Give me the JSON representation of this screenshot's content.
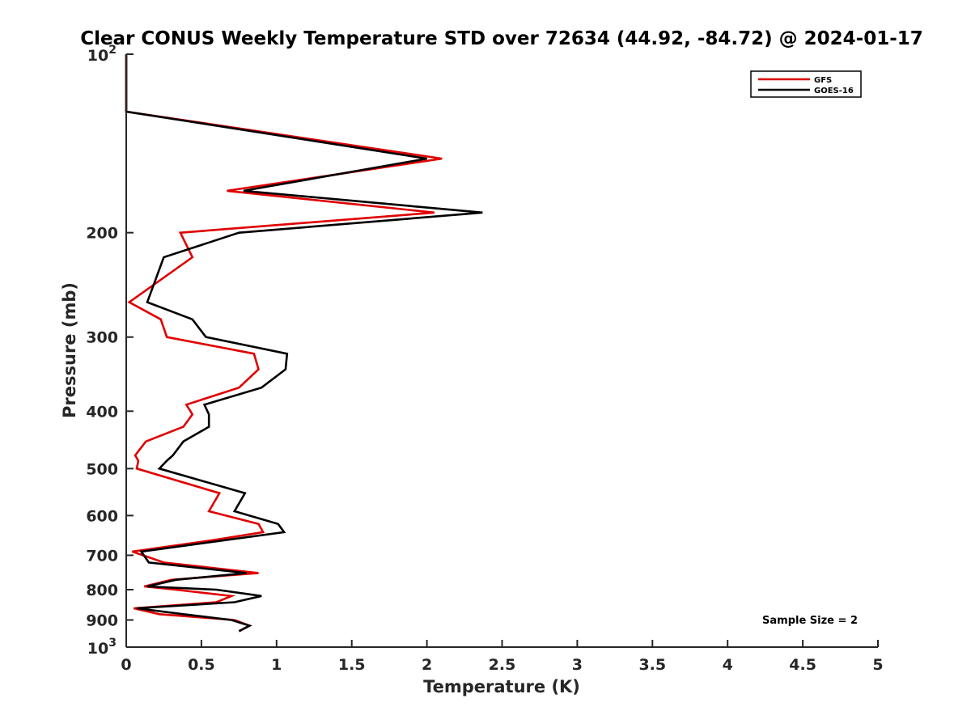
{
  "chart_data": {
    "type": "line",
    "title": "Clear CONUS Weekly Temperature STD over 72634 (44.92, -84.72) @ 2024-01-17",
    "xlabel": "Temperature (K)",
    "ylabel": "Pressure (mb)",
    "xlim": [
      0,
      5
    ],
    "ylim": [
      1000,
      100
    ],
    "y_scale": "log",
    "x_ticks": [
      "0",
      "0.5",
      "1",
      "1.5",
      "2",
      "2.5",
      "3",
      "3.5",
      "4",
      "4.5",
      "5"
    ],
    "y_ticks": [
      {
        "value": 200,
        "label": "200"
      },
      {
        "value": 300,
        "label": "300"
      },
      {
        "value": 400,
        "label": "400"
      },
      {
        "value": 500,
        "label": "500"
      },
      {
        "value": 600,
        "label": "600"
      },
      {
        "value": 700,
        "label": "700"
      },
      {
        "value": 800,
        "label": "800"
      },
      {
        "value": 900,
        "label": "900"
      }
    ],
    "y_end_labels": {
      "top_base": "10",
      "top_exp": "2",
      "bottom_base": "10",
      "bottom_exp": "3"
    },
    "legend_position": "top-right",
    "grid": false,
    "annotation": "Sample Size = 2",
    "series": [
      {
        "name": "GFS",
        "color": "#e00000",
        "points": [
          [
            0.0,
            100
          ],
          [
            0.0,
            125
          ],
          [
            2.1,
            150
          ],
          [
            0.67,
            170
          ],
          [
            2.05,
            185
          ],
          [
            0.36,
            200
          ],
          [
            0.44,
            220
          ],
          [
            0.02,
            262
          ],
          [
            0.23,
            280
          ],
          [
            0.27,
            300
          ],
          [
            0.85,
            320
          ],
          [
            0.88,
            340
          ],
          [
            0.75,
            365
          ],
          [
            0.4,
            390
          ],
          [
            0.44,
            405
          ],
          [
            0.38,
            425
          ],
          [
            0.13,
            450
          ],
          [
            0.06,
            475
          ],
          [
            0.08,
            485
          ],
          [
            0.07,
            500
          ],
          [
            0.62,
            550
          ],
          [
            0.55,
            590
          ],
          [
            0.88,
            620
          ],
          [
            0.91,
            640
          ],
          [
            0.58,
            660
          ],
          [
            0.04,
            690
          ],
          [
            0.25,
            720
          ],
          [
            0.88,
            750
          ],
          [
            0.3,
            770
          ],
          [
            0.12,
            790
          ],
          [
            0.33,
            800
          ],
          [
            0.7,
            820
          ],
          [
            0.6,
            840
          ],
          [
            0.05,
            860
          ],
          [
            0.22,
            880
          ],
          [
            0.72,
            900
          ],
          [
            0.82,
            920
          ],
          [
            0.75,
            940
          ]
        ]
      },
      {
        "name": "GOES-16",
        "color": "#000000",
        "points": [
          [
            0.0,
            100
          ],
          [
            0.0,
            125
          ],
          [
            2.0,
            150
          ],
          [
            0.78,
            170
          ],
          [
            2.37,
            185
          ],
          [
            0.75,
            200
          ],
          [
            0.25,
            220
          ],
          [
            0.14,
            262
          ],
          [
            0.44,
            280
          ],
          [
            0.53,
            300
          ],
          [
            1.07,
            320
          ],
          [
            1.06,
            340
          ],
          [
            0.9,
            365
          ],
          [
            0.52,
            390
          ],
          [
            0.55,
            405
          ],
          [
            0.55,
            425
          ],
          [
            0.38,
            450
          ],
          [
            0.31,
            475
          ],
          [
            0.27,
            485
          ],
          [
            0.22,
            500
          ],
          [
            0.79,
            550
          ],
          [
            0.72,
            590
          ],
          [
            1.01,
            620
          ],
          [
            1.05,
            640
          ],
          [
            0.1,
            690
          ],
          [
            0.15,
            720
          ],
          [
            0.8,
            750
          ],
          [
            0.33,
            770
          ],
          [
            0.14,
            790
          ],
          [
            0.6,
            800
          ],
          [
            0.9,
            820
          ],
          [
            0.72,
            840
          ],
          [
            0.07,
            860
          ],
          [
            0.38,
            880
          ],
          [
            0.7,
            900
          ],
          [
            0.82,
            920
          ],
          [
            0.75,
            940
          ]
        ]
      }
    ]
  }
}
